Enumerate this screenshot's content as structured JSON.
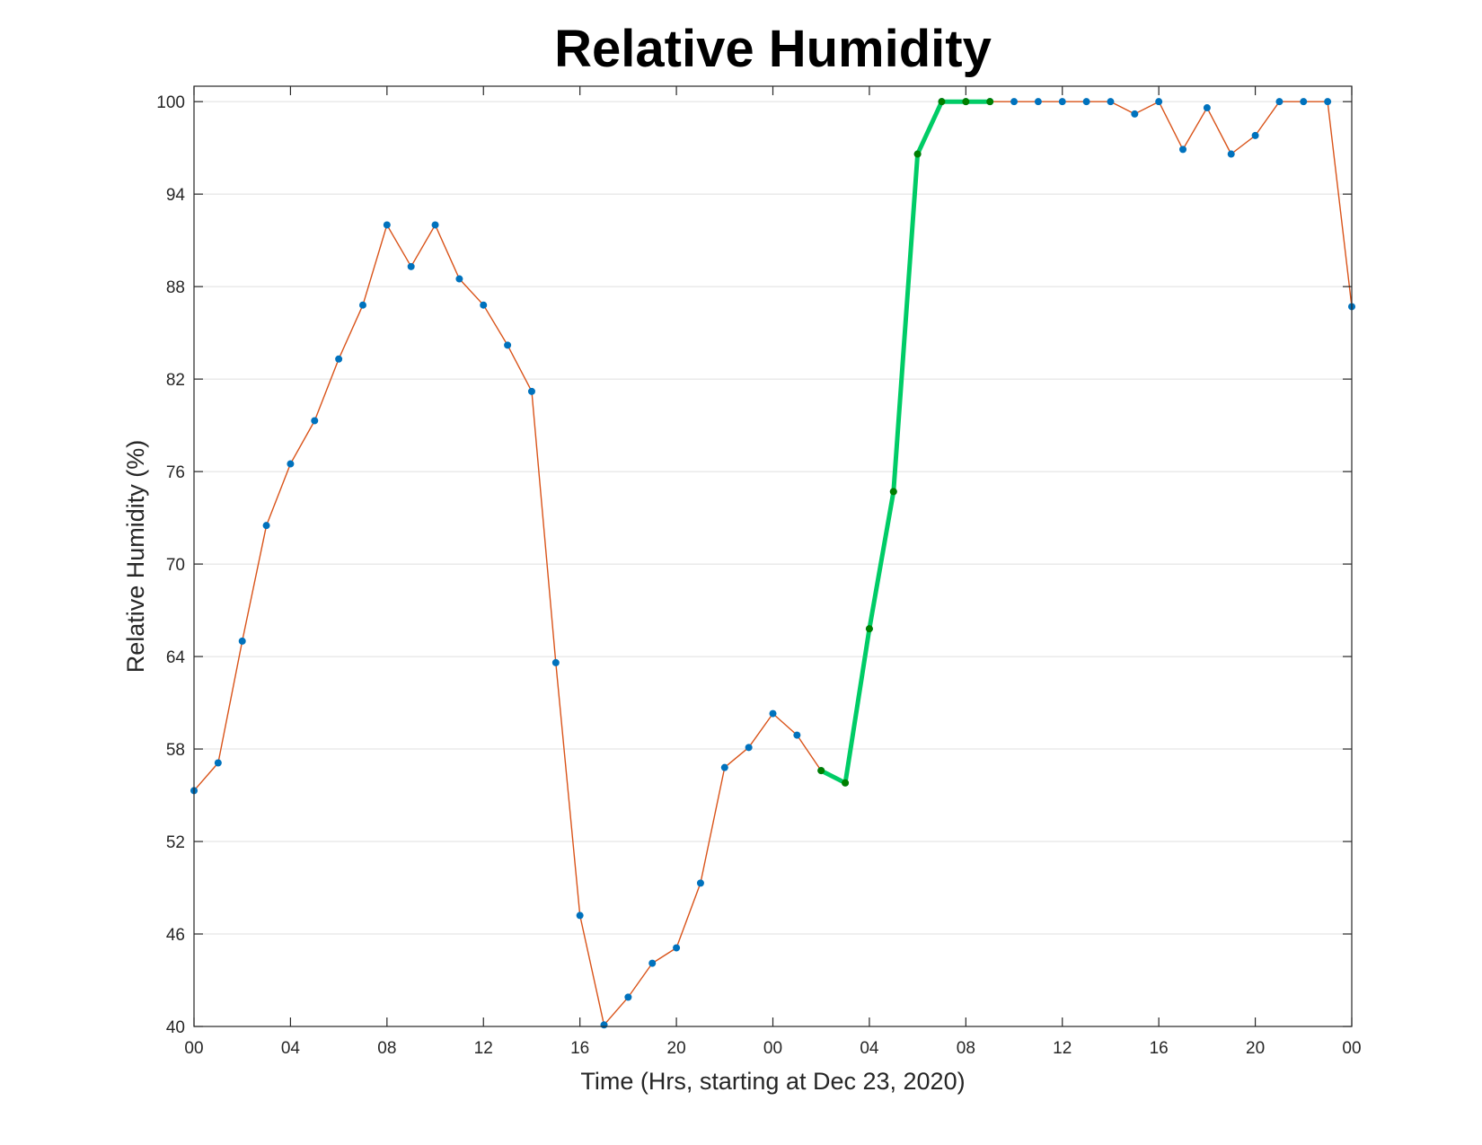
{
  "chart_data": {
    "type": "line",
    "title": "Relative Humidity",
    "xlabel": "Time (Hrs, starting at Dec 23, 2020)",
    "ylabel": "Relative Humidity (%)",
    "ylim": [
      40,
      101
    ],
    "xlim": [
      0,
      48
    ],
    "yticks": [
      40,
      46,
      52,
      58,
      64,
      70,
      76,
      82,
      88,
      94,
      100
    ],
    "xtick_values": [
      0,
      4,
      8,
      12,
      16,
      20,
      24,
      28,
      32,
      36,
      40,
      44,
      48
    ],
    "xtick_labels": [
      "00",
      "04",
      "08",
      "12",
      "16",
      "20",
      "00",
      "04",
      "08",
      "12",
      "16",
      "20",
      "00"
    ],
    "grid": "horizontal",
    "series": [
      {
        "x": [
          0,
          1,
          2,
          3,
          4,
          5,
          6,
          7,
          8,
          9,
          10,
          11,
          12,
          13,
          14,
          15,
          16,
          17,
          18,
          19,
          20,
          21,
          22,
          23,
          24,
          25,
          26,
          27,
          28,
          29,
          30,
          31,
          32,
          33,
          34,
          35,
          36,
          37,
          38,
          39,
          40,
          41,
          42,
          43,
          44,
          45,
          46,
          47,
          48
        ],
        "values": [
          55.3,
          57.1,
          65.0,
          72.5,
          76.5,
          79.3,
          83.3,
          86.8,
          92.0,
          89.3,
          92.0,
          88.5,
          86.8,
          84.2,
          81.2,
          63.6,
          47.2,
          40.1,
          41.9,
          44.1,
          45.1,
          49.3,
          56.8,
          58.1,
          60.3,
          58.9,
          56.6,
          55.8,
          65.8,
          74.7,
          96.6,
          100,
          100,
          100,
          100,
          100,
          100,
          100,
          100,
          99.2,
          100,
          96.9,
          99.6,
          96.6,
          97.8,
          100,
          100,
          100,
          86.7
        ],
        "line_color": "#d95319",
        "marker_color": "#0072bd"
      },
      {
        "x": [
          26,
          27,
          28,
          29,
          30,
          31,
          32,
          33
        ],
        "values": [
          56.6,
          55.8,
          65.8,
          74.7,
          96.6,
          100,
          100,
          100
        ],
        "line_color": "#00cc66",
        "marker_color": "#007f00"
      }
    ]
  }
}
